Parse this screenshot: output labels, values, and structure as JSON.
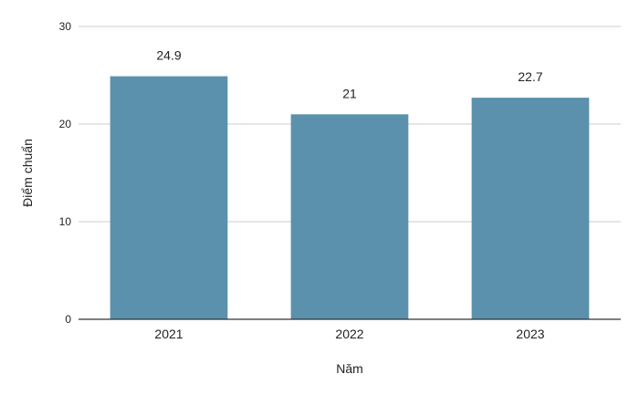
{
  "chart_data": {
    "type": "bar",
    "categories": [
      "2021",
      "2022",
      "2023"
    ],
    "values": [
      24.9,
      21,
      22.7
    ],
    "data_labels": [
      "24.9",
      "21",
      "22.7"
    ],
    "xlabel": "Năm",
    "ylabel": "Điểm chuẩn",
    "ylim": [
      0,
      30
    ],
    "yticks": [
      0,
      10,
      20,
      30
    ],
    "grid": true,
    "bar_color": "#5b91ad"
  }
}
